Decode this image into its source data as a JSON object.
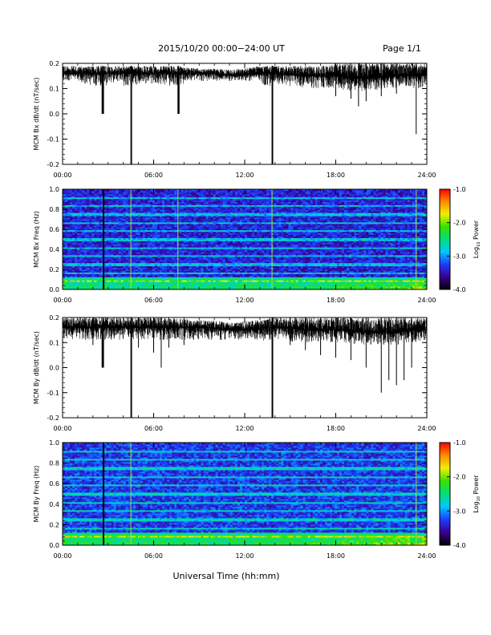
{
  "header": {
    "title": "2015/10/20  00:00−24:00 UT",
    "page": "Page 1/1"
  },
  "footer": {
    "xlabel": "Universal Time (hh:mm)"
  },
  "colors": {
    "trace": "#000000",
    "frame": "#000000",
    "colormap": [
      "#000000",
      "#3a0090",
      "#1e3cff",
      "#00c8ff",
      "#00e07a",
      "#38e000",
      "#f0f000",
      "#ff8c00",
      "#ff0000"
    ]
  },
  "chart_data": [
    {
      "type": "line",
      "ylabel": "MCM Bx dB/dt (nT/sec)",
      "xlim": [
        "00:00",
        "24:00"
      ],
      "ylim": [
        -0.2,
        0.2
      ],
      "x_ticks": [
        "00:00",
        "06:00",
        "12:00",
        "18:00",
        "24:00"
      ],
      "y_ticks": [
        "-0.2",
        "-0.1",
        "0.0",
        "0.1",
        "0.2"
      ],
      "series": [
        {
          "x_hours": [
            0,
            1,
            2,
            2.6,
            2.7,
            3,
            4,
            4.5,
            4.55,
            5,
            6,
            7,
            7.6,
            7.65,
            8,
            9,
            10,
            11,
            12,
            13,
            13.8,
            13.85,
            14,
            15,
            16,
            17,
            18,
            19,
            19.5,
            20,
            21,
            22,
            23,
            23.3,
            23.4,
            24
          ],
          "y_mid": [
            0.16,
            0.16,
            0.16,
            0.16,
            0.16,
            0.16,
            0.16,
            0.16,
            0.16,
            0.16,
            0.16,
            0.16,
            0.16,
            0.16,
            0.16,
            0.16,
            0.16,
            0.15,
            0.155,
            0.16,
            0.16,
            0.16,
            0.16,
            0.155,
            0.15,
            0.15,
            0.15,
            0.14,
            0.14,
            0.14,
            0.145,
            0.15,
            0.15,
            0.15,
            0.15,
            0.155
          ],
          "y_min": [
            0.13,
            0.13,
            0.11,
            0.0,
            0.0,
            0.12,
            0.13,
            -0.2,
            -0.2,
            0.12,
            0.12,
            0.11,
            0.0,
            0.0,
            0.13,
            0.13,
            0.13,
            0.13,
            0.13,
            0.13,
            -0.2,
            -0.2,
            0.12,
            0.11,
            0.1,
            0.09,
            0.07,
            0.06,
            0.03,
            0.05,
            0.07,
            0.08,
            0.09,
            -0.08,
            0.1,
            0.11
          ],
          "y_max": [
            0.19,
            0.19,
            0.19,
            0.19,
            0.19,
            0.19,
            0.19,
            0.19,
            0.19,
            0.19,
            0.19,
            0.19,
            0.19,
            0.19,
            0.185,
            0.18,
            0.18,
            0.175,
            0.18,
            0.19,
            0.19,
            0.19,
            0.19,
            0.19,
            0.19,
            0.19,
            0.2,
            0.2,
            0.2,
            0.2,
            0.2,
            0.2,
            0.2,
            0.2,
            0.2,
            0.2
          ]
        }
      ]
    },
    {
      "type": "heatmap",
      "ylabel": "MCM Bx Freq (Hz)",
      "xlim": [
        "00:00",
        "24:00"
      ],
      "ylim": [
        0.0,
        1.0
      ],
      "x_ticks": [
        "00:00",
        "06:00",
        "12:00",
        "18:00",
        "24:00"
      ],
      "y_ticks": [
        "0.0",
        "0.2",
        "0.4",
        "0.6",
        "0.8",
        "1.0"
      ],
      "colorbar_label": "Log",
      "colorbar_label_sub": "10",
      "colorbar_label_tail": " Power",
      "clim": [
        -4.0,
        -1.0
      ],
      "colorbar_ticks": [
        "-1.0",
        "-2.0",
        "-3.0",
        "-4.0"
      ],
      "background_log_power": -3.4,
      "low_freq_log_power": -2.6,
      "harmonic_lines_hz": [
        0.083,
        0.167,
        0.25,
        0.333,
        0.417,
        0.5,
        0.583,
        0.667,
        0.75,
        0.833,
        0.917
      ],
      "vertical_event_hours": [
        2.7,
        4.5,
        7.6,
        13.8,
        23.3
      ]
    },
    {
      "type": "line",
      "ylabel": "MCM By dB/dt (nT/sec)",
      "xlim": [
        "00:00",
        "24:00"
      ],
      "ylim": [
        -0.2,
        0.2
      ],
      "x_ticks": [
        "00:00",
        "06:00",
        "12:00",
        "18:00",
        "24:00"
      ],
      "y_ticks": [
        "-0.2",
        "-0.1",
        "0.0",
        "0.1",
        "0.2"
      ],
      "series": [
        {
          "x_hours": [
            0,
            1,
            2,
            2.6,
            2.7,
            3,
            4,
            4.5,
            4.55,
            5,
            6,
            6.5,
            7,
            8,
            9,
            10,
            11,
            12,
            13,
            13.8,
            13.85,
            14,
            15,
            16,
            17,
            18,
            19,
            20,
            21,
            21.5,
            22,
            22.5,
            23,
            24
          ],
          "y_mid": [
            0.16,
            0.16,
            0.16,
            0.16,
            0.16,
            0.16,
            0.16,
            0.16,
            0.16,
            0.16,
            0.16,
            0.16,
            0.16,
            0.16,
            0.16,
            0.155,
            0.15,
            0.15,
            0.155,
            0.16,
            0.16,
            0.16,
            0.155,
            0.15,
            0.15,
            0.15,
            0.145,
            0.14,
            0.14,
            0.14,
            0.14,
            0.145,
            0.15,
            0.15
          ],
          "y_min": [
            0.12,
            0.1,
            0.09,
            0.0,
            0.0,
            0.1,
            0.11,
            -0.2,
            -0.2,
            0.08,
            0.06,
            0.0,
            0.08,
            0.09,
            0.1,
            0.11,
            0.11,
            0.11,
            0.11,
            -0.2,
            -0.2,
            0.1,
            0.09,
            0.07,
            0.05,
            0.04,
            0.03,
            0.0,
            -0.1,
            -0.05,
            -0.07,
            -0.05,
            0.0,
            0.02
          ],
          "y_max": [
            0.2,
            0.2,
            0.2,
            0.2,
            0.2,
            0.2,
            0.2,
            0.2,
            0.2,
            0.2,
            0.2,
            0.2,
            0.2,
            0.195,
            0.19,
            0.19,
            0.18,
            0.185,
            0.19,
            0.2,
            0.2,
            0.2,
            0.2,
            0.2,
            0.2,
            0.2,
            0.2,
            0.2,
            0.2,
            0.2,
            0.2,
            0.2,
            0.2,
            0.2
          ]
        }
      ]
    },
    {
      "type": "heatmap",
      "ylabel": "MCM By Freq (Hz)",
      "xlim": [
        "00:00",
        "24:00"
      ],
      "ylim": [
        0.0,
        1.0
      ],
      "x_ticks": [
        "00:00",
        "06:00",
        "12:00",
        "18:00",
        "24:00"
      ],
      "y_ticks": [
        "0.0",
        "0.2",
        "0.4",
        "0.6",
        "0.8",
        "1.0"
      ],
      "colorbar_label": "Log",
      "colorbar_label_sub": "10",
      "colorbar_label_tail": " Power",
      "clim": [
        -4.0,
        -1.0
      ],
      "colorbar_ticks": [
        "-1.0",
        "-2.0",
        "-3.0",
        "-4.0"
      ],
      "background_log_power": -3.3,
      "low_freq_log_power": -2.5,
      "harmonic_lines_hz": [
        0.083,
        0.167,
        0.25,
        0.333,
        0.417,
        0.5,
        0.583,
        0.667,
        0.75,
        0.833,
        0.917
      ],
      "vertical_event_hours": [
        2.7,
        4.5,
        23.3
      ]
    }
  ]
}
